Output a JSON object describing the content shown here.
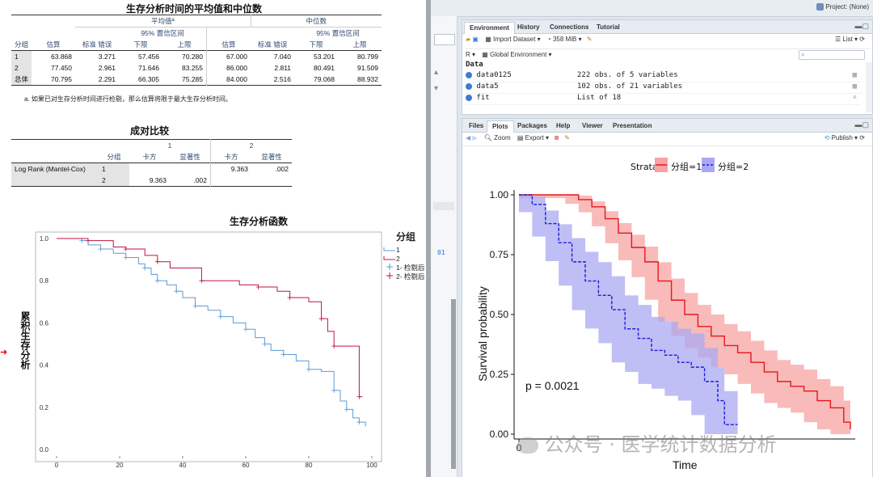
{
  "spss": {
    "table1": {
      "title": "生存分析时间的平均值和中位数",
      "group_mean": "平均值ª",
      "group_median": "中位数",
      "ci": "95% 置信区间",
      "col_group": "分组",
      "col_est": "估算",
      "col_se": "标准 错误",
      "col_lower": "下限",
      "col_upper": "上限",
      "rows": [
        [
          "1",
          "63.868",
          "3.271",
          "57.456",
          "70.280",
          "67.000",
          "7.040",
          "53.201",
          "80.799"
        ],
        [
          "2",
          "77.450",
          "2.961",
          "71.646",
          "83.255",
          "86.000",
          "2.811",
          "80.491",
          "91.509"
        ],
        [
          "总体",
          "70.795",
          "2.291",
          "66.305",
          "75.285",
          "84.000",
          "2.516",
          "79.068",
          "88.932"
        ]
      ],
      "footnote": "a. 如果已对生存分析时间进行检剔，那么估算将限于最大生存分析时间。"
    },
    "table2": {
      "title": "成对比较",
      "col1": "1",
      "col2": "2",
      "col_group": "分组",
      "col_chi": "卡方",
      "col_sig": "显著性",
      "row_label": "Log Rank (Mantel-Cox)",
      "r1_group": "1",
      "r1_chi2": "9.363",
      "r1_sig2": ".002",
      "r2_group": "2",
      "r2_chi1": "9.363",
      "r2_sig1": ".002"
    },
    "plot": {
      "title": "生存分析函数",
      "ylabel": "累积生存分析",
      "legend_title": "分组",
      "legend": [
        "1",
        "2",
        "1- 检剔后",
        "2- 检剔后"
      ],
      "colors": {
        "g1": "#5b9bd5",
        "g2": "#c0143c"
      },
      "xticks": [
        "0",
        "20",
        "40",
        "60",
        "80",
        "100"
      ],
      "yticks": [
        "0.0",
        "0.2",
        "0.4",
        "0.6",
        "0.8",
        "1.0"
      ]
    }
  },
  "rstudio": {
    "project": "Project: (None)",
    "env_tabs": [
      "Environment",
      "History",
      "Connections",
      "Tutorial"
    ],
    "env_toolbar": {
      "import": "Import Dataset",
      "memory": "358 MiB",
      "list": "List",
      "r": "R",
      "scope": "Global Environment"
    },
    "data_header": "Data",
    "env_rows": [
      {
        "name": "data0125",
        "value": "222 obs. of 5 variables"
      },
      {
        "name": "data5",
        "value": "102 obs. of 21 variables"
      },
      {
        "name": "fit",
        "value": "List of  18"
      }
    ],
    "plots_tabs": [
      "Files",
      "Plots",
      "Packages",
      "Help",
      "Viewer",
      "Presentation"
    ],
    "plots_toolbar": {
      "zoom": "Zoom",
      "export": "Export",
      "publish": "Publish"
    },
    "console_fragment": "01"
  },
  "km_plot": {
    "legend_title": "Strata",
    "strata": [
      "分组=1",
      "分组=2"
    ],
    "colors": {
      "s1": "#e8161b",
      "s2": "#1c1ce0",
      "s1_fill": "#f7a3a3",
      "s2_fill": "#a9a9f2"
    },
    "ylabel": "Survival probability",
    "xlabel": "Time",
    "yticks": [
      "0.00",
      "0.25",
      "0.50",
      "0.75",
      "1.00"
    ],
    "xtick0": "0",
    "pvalue": "p = 0.0021"
  },
  "watermark": "公众号 · 医学统计数据分析",
  "chart_data": [
    {
      "type": "line",
      "title": "生存分析函数",
      "ylabel": "累积生存分析",
      "xlabel": "",
      "xlim": [
        0,
        100
      ],
      "ylim": [
        0,
        1
      ],
      "series": [
        {
          "name": "1",
          "x": [
            0,
            8,
            10,
            14,
            18,
            22,
            26,
            28,
            30,
            32,
            35,
            38,
            40,
            44,
            48,
            52,
            56,
            60,
            63,
            66,
            68,
            72,
            76,
            80,
            84,
            88,
            90,
            92,
            94,
            96,
            98
          ],
          "y": [
            1.0,
            0.99,
            0.97,
            0.95,
            0.93,
            0.91,
            0.88,
            0.86,
            0.83,
            0.8,
            0.78,
            0.75,
            0.72,
            0.68,
            0.66,
            0.63,
            0.6,
            0.57,
            0.53,
            0.5,
            0.47,
            0.45,
            0.42,
            0.38,
            0.37,
            0.28,
            0.23,
            0.19,
            0.15,
            0.13,
            0.11
          ]
        },
        {
          "name": "2",
          "x": [
            0,
            10,
            18,
            22,
            28,
            32,
            36,
            46,
            58,
            64,
            70,
            74,
            80,
            84,
            86,
            88,
            95,
            96,
            97
          ],
          "y": [
            1.0,
            0.99,
            0.96,
            0.95,
            0.92,
            0.89,
            0.86,
            0.8,
            0.78,
            0.77,
            0.75,
            0.72,
            0.7,
            0.62,
            0.56,
            0.49,
            0.49,
            0.25,
            0.25
          ]
        }
      ]
    },
    {
      "type": "line",
      "title": "",
      "ylabel": "Survival probability",
      "xlabel": "Time",
      "ylim": [
        0,
        1
      ],
      "series": [
        {
          "name": "分组=1",
          "x": [
            0,
            14,
            18,
            22,
            26,
            30,
            34,
            38,
            42,
            46,
            50,
            54,
            58,
            62,
            66,
            70,
            74,
            78,
            82,
            86,
            90,
            94,
            98,
            100
          ],
          "y": [
            1.0,
            1.0,
            0.98,
            0.95,
            0.9,
            0.84,
            0.78,
            0.72,
            0.64,
            0.56,
            0.5,
            0.45,
            0.41,
            0.37,
            0.34,
            0.3,
            0.26,
            0.22,
            0.2,
            0.18,
            0.14,
            0.11,
            0.05,
            0.02
          ]
        },
        {
          "name": "分组=2",
          "x": [
            0,
            4,
            8,
            12,
            16,
            20,
            24,
            28,
            32,
            36,
            40,
            44,
            48,
            52,
            56,
            60,
            62,
            66
          ],
          "y": [
            1.0,
            0.96,
            0.88,
            0.8,
            0.72,
            0.64,
            0.58,
            0.52,
            0.44,
            0.4,
            0.35,
            0.33,
            0.3,
            0.28,
            0.22,
            0.14,
            0.04,
            0.04
          ]
        }
      ]
    }
  ]
}
